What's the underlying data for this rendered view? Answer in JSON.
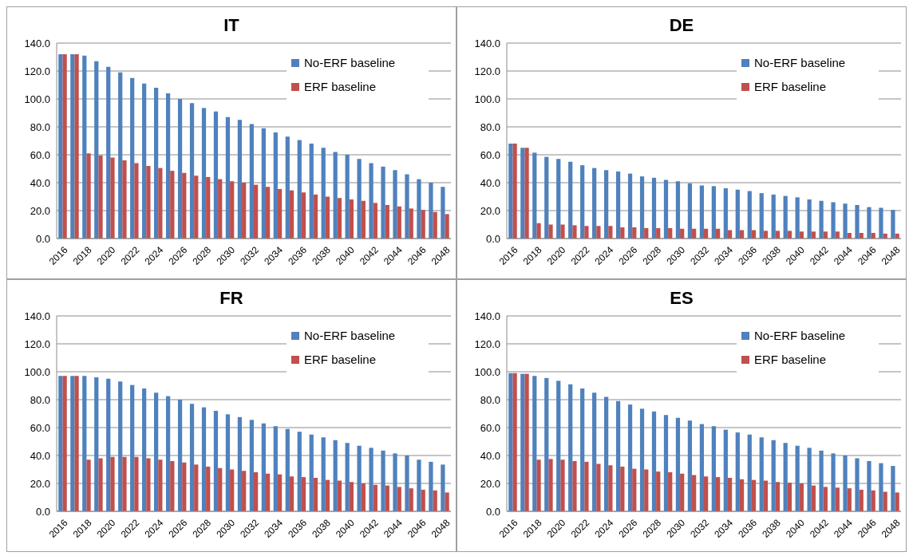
{
  "chart_data": [
    {
      "type": "bar",
      "title": "IT",
      "categories": [
        "2016",
        null,
        "2018",
        null,
        "2020",
        null,
        "2022",
        null,
        "2024",
        null,
        "2026",
        null,
        "2028",
        null,
        "2030",
        null,
        "2032",
        null,
        "2034",
        null,
        "2036",
        null,
        "2038",
        null,
        "2040",
        null,
        "2042",
        null,
        "2044",
        null,
        "2046",
        null,
        "2048"
      ],
      "series": [
        {
          "name": "No-ERF baseline",
          "color": "#4f81bd",
          "values": [
            132,
            132,
            131,
            127,
            123,
            119,
            115,
            111,
            108,
            104,
            100,
            97,
            93.5,
            91,
            87,
            85,
            82,
            79,
            76,
            73,
            70.5,
            68,
            65,
            62,
            60,
            57,
            54,
            51.5,
            49,
            46,
            42.5,
            40,
            37
          ]
        },
        {
          "name": "ERF baseline",
          "color": "#c0504d",
          "values": [
            132,
            132,
            61,
            59.5,
            58,
            56,
            54,
            52,
            50.5,
            48.5,
            47,
            45,
            44,
            42.5,
            41,
            40,
            38.5,
            37,
            35.5,
            34.5,
            33,
            31.5,
            30,
            29,
            28,
            27,
            25.5,
            24,
            23,
            21.5,
            20.5,
            19,
            17.5
          ]
        }
      ],
      "ylim": [
        0,
        140
      ],
      "yticks": [
        {
          "value": 0,
          "label": "0.0"
        },
        {
          "value": 20,
          "label": "20.0"
        },
        {
          "value": 40,
          "label": "40.0"
        },
        {
          "value": 60,
          "label": "60.0"
        },
        {
          "value": 80,
          "label": "80.0"
        },
        {
          "value": 100,
          "label": "100.0"
        },
        {
          "value": 120,
          "label": "120.0"
        },
        {
          "value": 140,
          "label": "140.0"
        }
      ],
      "grid": "y",
      "legend": "top right"
    },
    {
      "type": "bar",
      "title": "DE",
      "categories": [
        "2016",
        null,
        "2018",
        null,
        "2020",
        null,
        "2022",
        null,
        "2024",
        null,
        "2026",
        null,
        "2028",
        null,
        "2030",
        null,
        "2032",
        null,
        "2034",
        null,
        "2036",
        null,
        "2038",
        null,
        "2040",
        null,
        "2042",
        null,
        "2044",
        null,
        "2046",
        null,
        "2048"
      ],
      "series": [
        {
          "name": "No-ERF baseline",
          "color": "#4f81bd",
          "values": [
            68,
            65,
            61.5,
            58.5,
            57,
            55,
            52.5,
            50.5,
            49,
            48,
            46.5,
            44.5,
            43.5,
            42,
            41,
            39.5,
            38,
            37.5,
            36,
            35,
            34,
            32.5,
            31.5,
            30.5,
            29.5,
            28,
            27,
            26,
            25,
            24,
            22.5,
            22,
            20.5
          ]
        },
        {
          "name": "ERF baseline",
          "color": "#c0504d",
          "values": [
            68,
            65,
            11,
            10,
            10,
            9.5,
            9,
            9,
            9,
            8,
            8,
            7.5,
            7.5,
            7.5,
            7,
            7,
            7,
            7,
            6,
            6,
            6,
            5.5,
            5.5,
            5.5,
            5,
            5,
            5,
            5,
            4,
            4,
            4,
            3.5,
            3.5
          ]
        }
      ],
      "ylim": [
        0,
        140
      ],
      "yticks": [
        {
          "value": 0,
          "label": "0.0"
        },
        {
          "value": 20,
          "label": "20.0"
        },
        {
          "value": 40,
          "label": "40.0"
        },
        {
          "value": 60,
          "label": "60.0"
        },
        {
          "value": 80,
          "label": "80.0"
        },
        {
          "value": 100,
          "label": "100.0"
        },
        {
          "value": 120,
          "label": "120.0"
        },
        {
          "value": 140,
          "label": "140.0"
        }
      ],
      "grid": "y",
      "legend": "top right"
    },
    {
      "type": "bar",
      "title": "FR",
      "categories": [
        "2016",
        null,
        "2018",
        null,
        "2020",
        null,
        "2022",
        null,
        "2024",
        null,
        "2026",
        null,
        "2028",
        null,
        "2030",
        null,
        "2032",
        null,
        "2034",
        null,
        "2036",
        null,
        "2038",
        null,
        "2040",
        null,
        "2042",
        null,
        "2044",
        null,
        "2046",
        null,
        "2048"
      ],
      "series": [
        {
          "name": "No-ERF baseline",
          "color": "#4f81bd",
          "values": [
            97,
            97,
            97,
            96,
            95,
            93,
            90.5,
            88,
            85,
            82.5,
            80,
            77,
            74.5,
            72,
            69.5,
            67.5,
            65.5,
            63,
            61,
            59,
            57,
            55,
            53,
            51,
            49,
            47,
            45.5,
            43.5,
            41.5,
            40,
            37,
            35.5,
            33.5
          ]
        },
        {
          "name": "ERF baseline",
          "color": "#c0504d",
          "values": [
            97,
            97,
            37,
            38,
            39,
            39,
            39,
            38,
            37,
            36,
            35,
            33.5,
            32,
            31,
            30,
            29,
            28,
            27,
            26.5,
            25,
            24.5,
            24,
            22.5,
            22,
            21,
            20,
            19,
            18.5,
            17.5,
            16.5,
            15.5,
            15,
            13.5
          ]
        }
      ],
      "ylim": [
        0,
        140
      ],
      "yticks": [
        {
          "value": 0,
          "label": "0.0"
        },
        {
          "value": 20,
          "label": "20.0"
        },
        {
          "value": 40,
          "label": "40.0"
        },
        {
          "value": 60,
          "label": "60.0"
        },
        {
          "value": 80,
          "label": "80.0"
        },
        {
          "value": 100,
          "label": "100.0"
        },
        {
          "value": 120,
          "label": "120.0"
        },
        {
          "value": 140,
          "label": "140.0"
        }
      ],
      "grid": "y",
      "legend": "top right"
    },
    {
      "type": "bar",
      "title": "ES",
      "categories": [
        "2016",
        null,
        "2018",
        null,
        "2020",
        null,
        "2022",
        null,
        "2024",
        null,
        "2026",
        null,
        "2028",
        null,
        "2030",
        null,
        "2032",
        null,
        "2034",
        null,
        "2036",
        null,
        "2038",
        null,
        "2040",
        null,
        "2042",
        null,
        "2044",
        null,
        "2046",
        null,
        "2048"
      ],
      "series": [
        {
          "name": "No-ERF baseline",
          "color": "#4f81bd",
          "values": [
            99,
            98.5,
            97,
            95.5,
            93.5,
            91,
            88,
            85,
            82,
            79,
            76.5,
            73.5,
            71.5,
            69,
            67,
            65,
            62.5,
            61,
            58.5,
            56.5,
            55,
            53,
            51,
            49,
            47,
            45.5,
            43.5,
            41.5,
            40,
            38,
            36,
            34.5,
            32.5
          ]
        },
        {
          "name": "ERF baseline",
          "color": "#c0504d",
          "values": [
            99,
            98.5,
            37,
            37.5,
            37,
            36,
            35.5,
            34,
            33,
            32,
            30.5,
            30,
            28.5,
            28,
            27,
            26,
            25,
            24.5,
            24,
            23,
            22.5,
            22,
            21,
            20.5,
            20,
            18.5,
            17.5,
            17,
            16.5,
            15.5,
            15,
            14,
            13.5
          ]
        }
      ],
      "ylim": [
        0,
        140
      ],
      "yticks": [
        {
          "value": 0,
          "label": "0.0"
        },
        {
          "value": 20,
          "label": "20.0"
        },
        {
          "value": 40,
          "label": "40.0"
        },
        {
          "value": 60,
          "label": "60.0"
        },
        {
          "value": 80,
          "label": "80.0"
        },
        {
          "value": 100,
          "label": "100.0"
        },
        {
          "value": 120,
          "label": "120.0"
        },
        {
          "value": 140,
          "label": "140.0"
        }
      ],
      "grid": "y",
      "legend": "top right"
    }
  ]
}
